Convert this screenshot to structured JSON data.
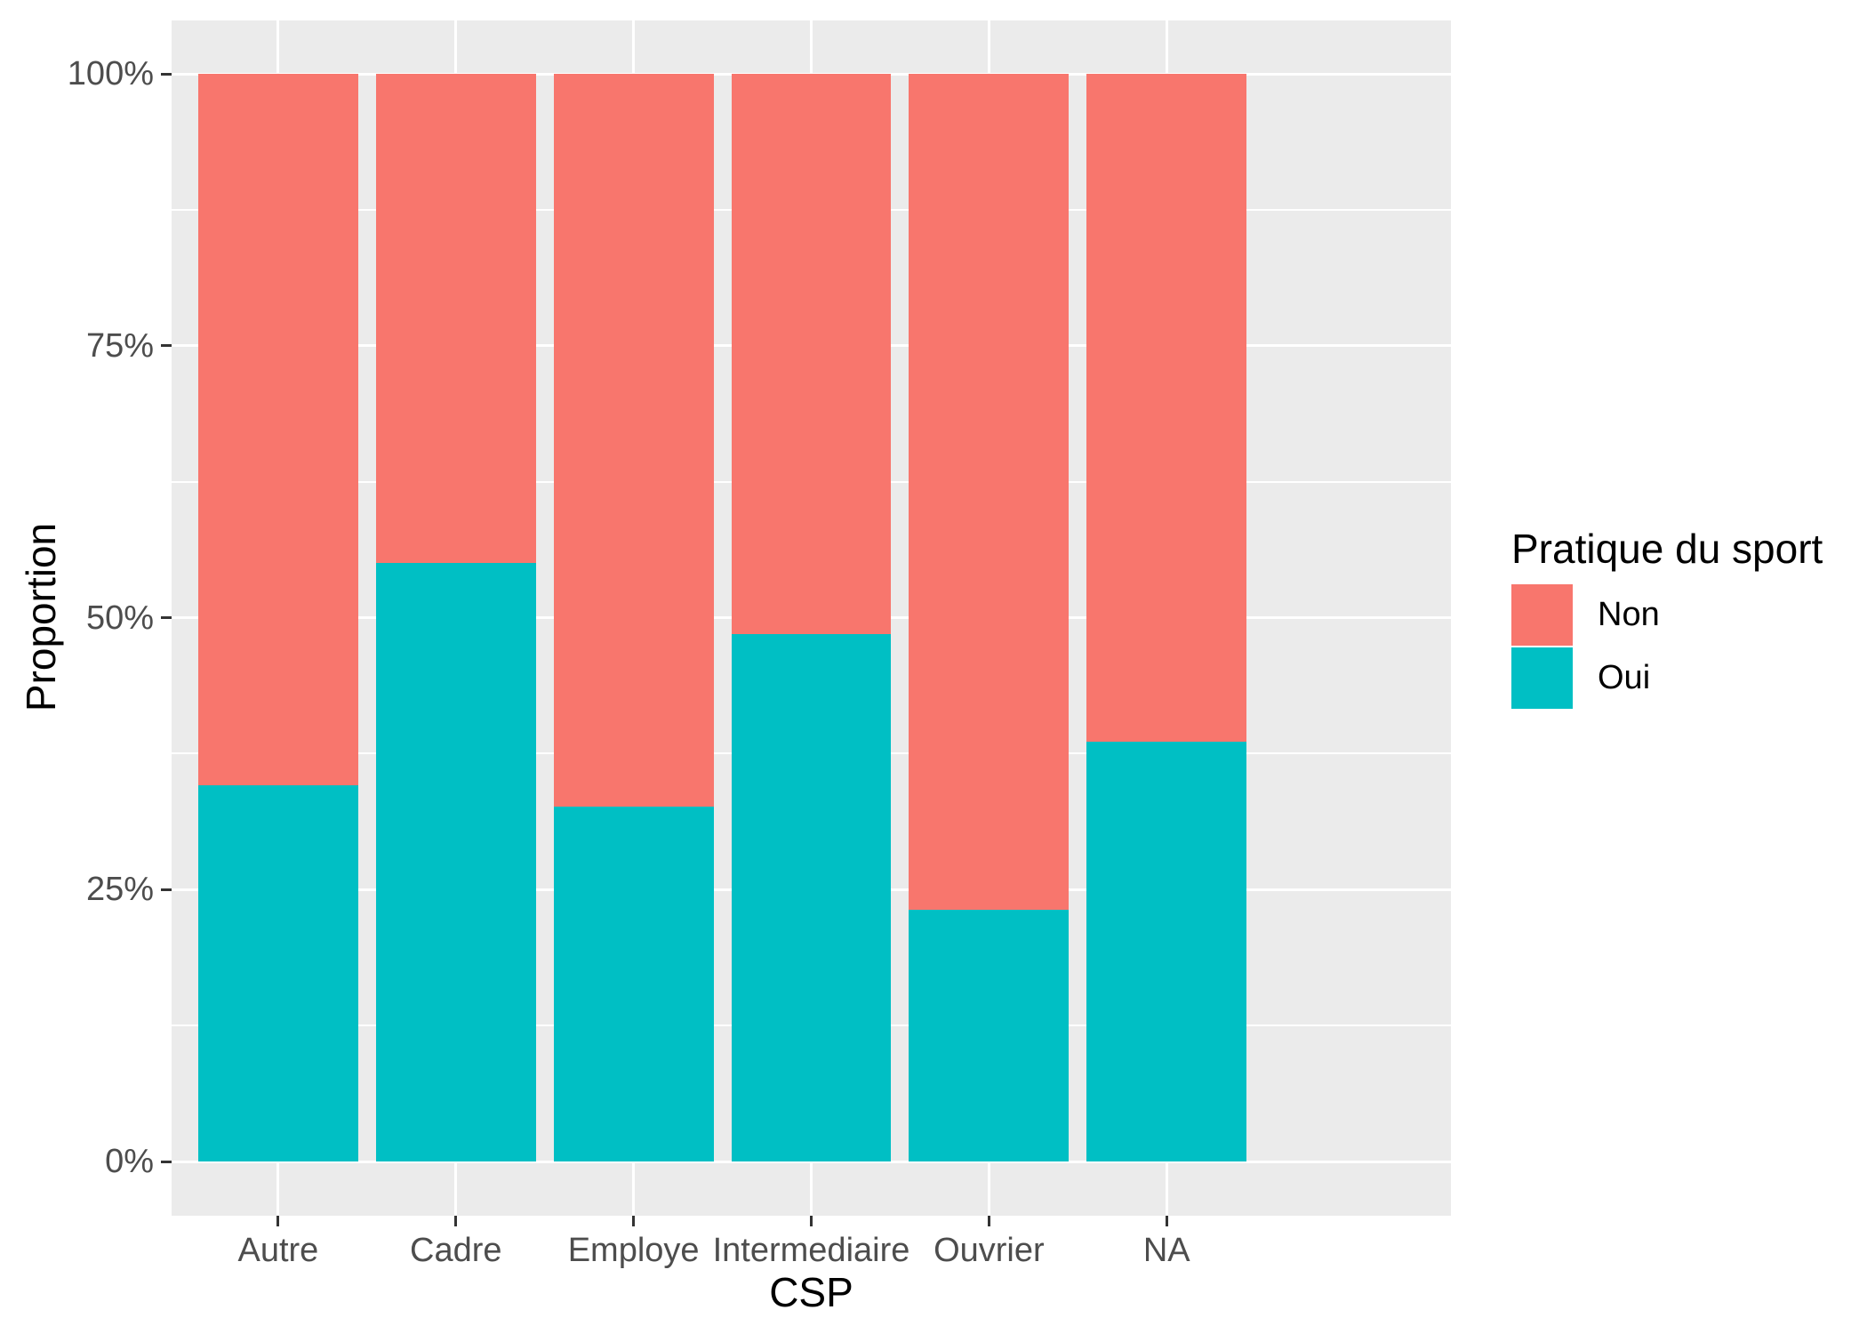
{
  "chart_data": {
    "type": "bar",
    "stacked": true,
    "normalized_percent": true,
    "orientation": "vertical",
    "title": "",
    "xlabel": "CSP",
    "ylabel": "Proportion",
    "categories": [
      "Autre",
      "Cadre",
      "Employe",
      "Intermediaire",
      "Ouvrier",
      "NA"
    ],
    "series": [
      {
        "name": "Oui",
        "color": "#00BFC4",
        "stack_position": "bottom",
        "values": [
          34.6,
          55.0,
          32.6,
          48.5,
          23.1,
          38.6
        ]
      },
      {
        "name": "Non",
        "color": "#F8766D",
        "stack_position": "top",
        "values": [
          65.4,
          45.0,
          67.4,
          51.5,
          76.9,
          61.4
        ]
      }
    ],
    "y_axis": {
      "tick_labels": [
        "0%",
        "25%",
        "50%",
        "75%",
        "100%"
      ],
      "tick_values": [
        0,
        25,
        50,
        75,
        100
      ],
      "minor_gridline_values": [
        12.5,
        37.5,
        62.5,
        87.5
      ],
      "range": [
        0,
        100
      ]
    },
    "legend": {
      "title": "Pratique du sport",
      "position": "right",
      "entries": [
        {
          "label": "Non",
          "color": "#F8766D"
        },
        {
          "label": "Oui",
          "color": "#00BFC4"
        }
      ]
    },
    "theme": {
      "panel_background": "#EBEBEB",
      "grid_color": "#FFFFFF",
      "tick_text_color": "#4D4D4D",
      "axis_title_color": "#000000",
      "tick_mark_color": "#333333",
      "figure_background": "#FFFFFF"
    },
    "layout_hints": {
      "grid": true,
      "bar_relative_width": 0.9,
      "legend_position": "right-middle"
    }
  }
}
